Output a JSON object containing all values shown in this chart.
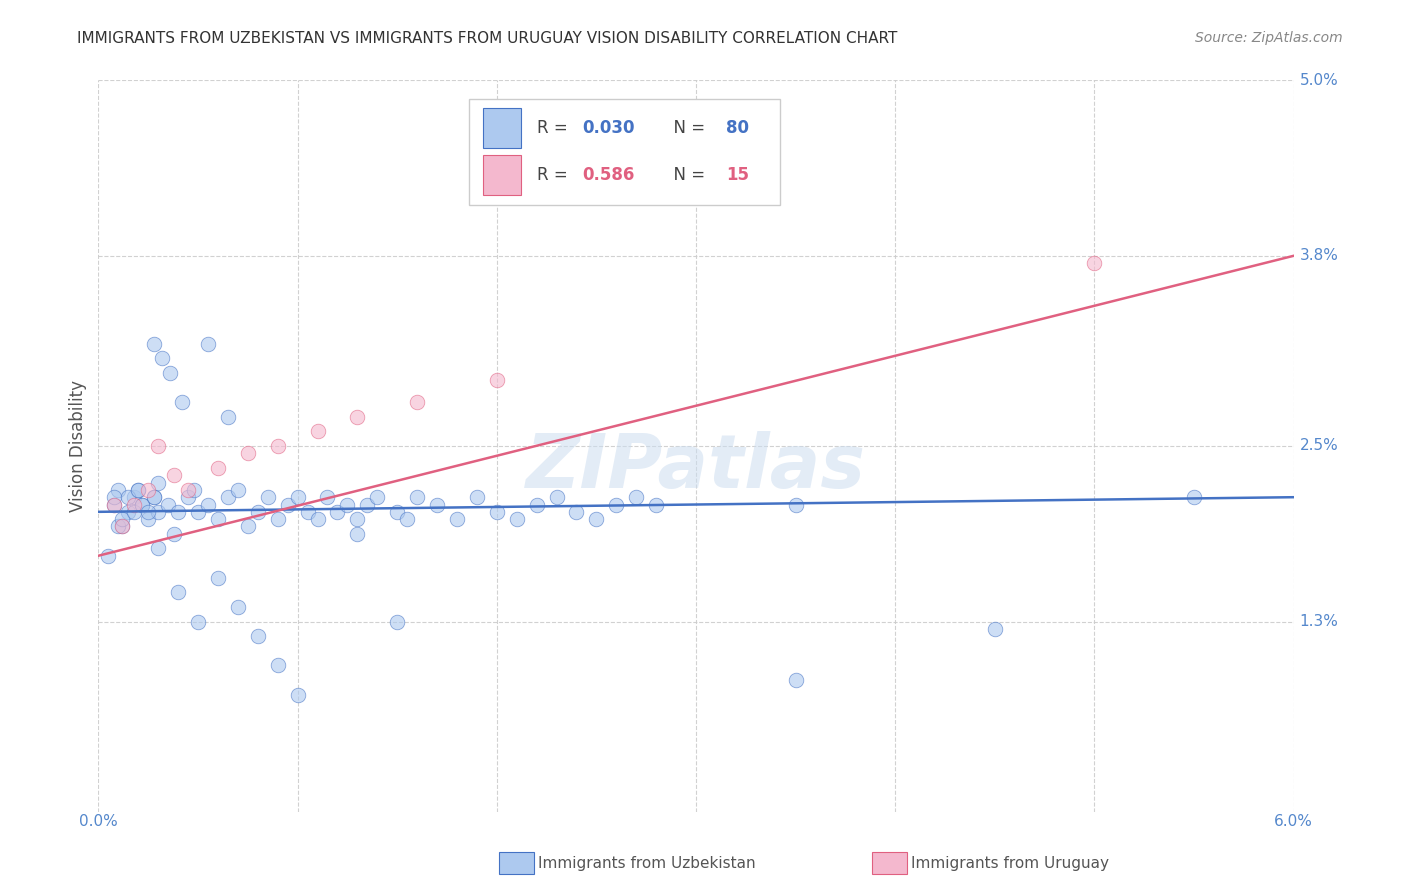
{
  "title": "IMMIGRANTS FROM UZBEKISTAN VS IMMIGRANTS FROM URUGUAY VISION DISABILITY CORRELATION CHART",
  "source": "Source: ZipAtlas.com",
  "ylabel": "Vision Disability",
  "xlim": [
    0.0,
    0.06
  ],
  "ylim": [
    0.0,
    0.05
  ],
  "xticks": [
    0.0,
    0.01,
    0.02,
    0.03,
    0.04,
    0.05,
    0.06
  ],
  "ytick_vals": [
    0.013,
    0.025,
    0.038,
    0.05
  ],
  "ytick_labels": [
    "1.3%",
    "2.5%",
    "3.8%",
    "5.0%"
  ],
  "uzbekistan_fill": "#adc9ef",
  "uzbekistan_edge": "#4472c4",
  "uruguay_fill": "#f4b8ce",
  "uruguay_edge": "#e06080",
  "uzbekistan_line_color": "#4472c4",
  "uruguay_line_color": "#e06080",
  "legend_R_uzbek": "0.030",
  "legend_N_uzbek": "80",
  "legend_R_uruguay": "0.586",
  "legend_N_uruguay": "15",
  "watermark": "ZIPatlas",
  "background_color": "#ffffff",
  "uzbek_x": [
    0.0008,
    0.001,
    0.0012,
    0.0015,
    0.0018,
    0.002,
    0.0022,
    0.0025,
    0.0028,
    0.003,
    0.0005,
    0.0008,
    0.001,
    0.0012,
    0.0015,
    0.0018,
    0.002,
    0.0022,
    0.0025,
    0.0028,
    0.003,
    0.0035,
    0.0038,
    0.004,
    0.0045,
    0.0048,
    0.005,
    0.0055,
    0.006,
    0.0065,
    0.007,
    0.0075,
    0.008,
    0.0085,
    0.009,
    0.0095,
    0.01,
    0.0105,
    0.011,
    0.0115,
    0.012,
    0.0125,
    0.013,
    0.0135,
    0.014,
    0.015,
    0.0155,
    0.016,
    0.017,
    0.018,
    0.019,
    0.02,
    0.021,
    0.022,
    0.023,
    0.024,
    0.025,
    0.026,
    0.027,
    0.003,
    0.004,
    0.005,
    0.006,
    0.007,
    0.008,
    0.009,
    0.01,
    0.028,
    0.035,
    0.045,
    0.0028,
    0.0032,
    0.0036,
    0.0042,
    0.0055,
    0.0065,
    0.013,
    0.015,
    0.035,
    0.055
  ],
  "uzbek_y": [
    0.021,
    0.022,
    0.0195,
    0.0205,
    0.0215,
    0.022,
    0.021,
    0.02,
    0.0215,
    0.0205,
    0.0175,
    0.0215,
    0.0195,
    0.02,
    0.0215,
    0.0205,
    0.022,
    0.021,
    0.0205,
    0.0215,
    0.0225,
    0.021,
    0.019,
    0.0205,
    0.0215,
    0.022,
    0.0205,
    0.021,
    0.02,
    0.0215,
    0.022,
    0.0195,
    0.0205,
    0.0215,
    0.02,
    0.021,
    0.0215,
    0.0205,
    0.02,
    0.0215,
    0.0205,
    0.021,
    0.02,
    0.021,
    0.0215,
    0.0205,
    0.02,
    0.0215,
    0.021,
    0.02,
    0.0215,
    0.0205,
    0.02,
    0.021,
    0.0215,
    0.0205,
    0.02,
    0.021,
    0.0215,
    0.018,
    0.015,
    0.013,
    0.016,
    0.014,
    0.012,
    0.01,
    0.008,
    0.021,
    0.009,
    0.0125,
    0.032,
    0.031,
    0.03,
    0.028,
    0.032,
    0.027,
    0.019,
    0.013,
    0.021,
    0.0215
  ],
  "uruguay_x": [
    0.0008,
    0.0012,
    0.0018,
    0.0025,
    0.003,
    0.0038,
    0.0045,
    0.006,
    0.0075,
    0.009,
    0.011,
    0.013,
    0.016,
    0.02,
    0.05
  ],
  "uruguay_y": [
    0.021,
    0.0195,
    0.021,
    0.022,
    0.025,
    0.023,
    0.022,
    0.0235,
    0.0245,
    0.025,
    0.026,
    0.027,
    0.028,
    0.0295,
    0.0375
  ],
  "uzbek_line_x": [
    0.0,
    0.06
  ],
  "uzbek_line_y": [
    0.0205,
    0.0215
  ],
  "uruguay_line_x": [
    0.0,
    0.06
  ],
  "uruguay_line_y": [
    0.0175,
    0.038
  ]
}
